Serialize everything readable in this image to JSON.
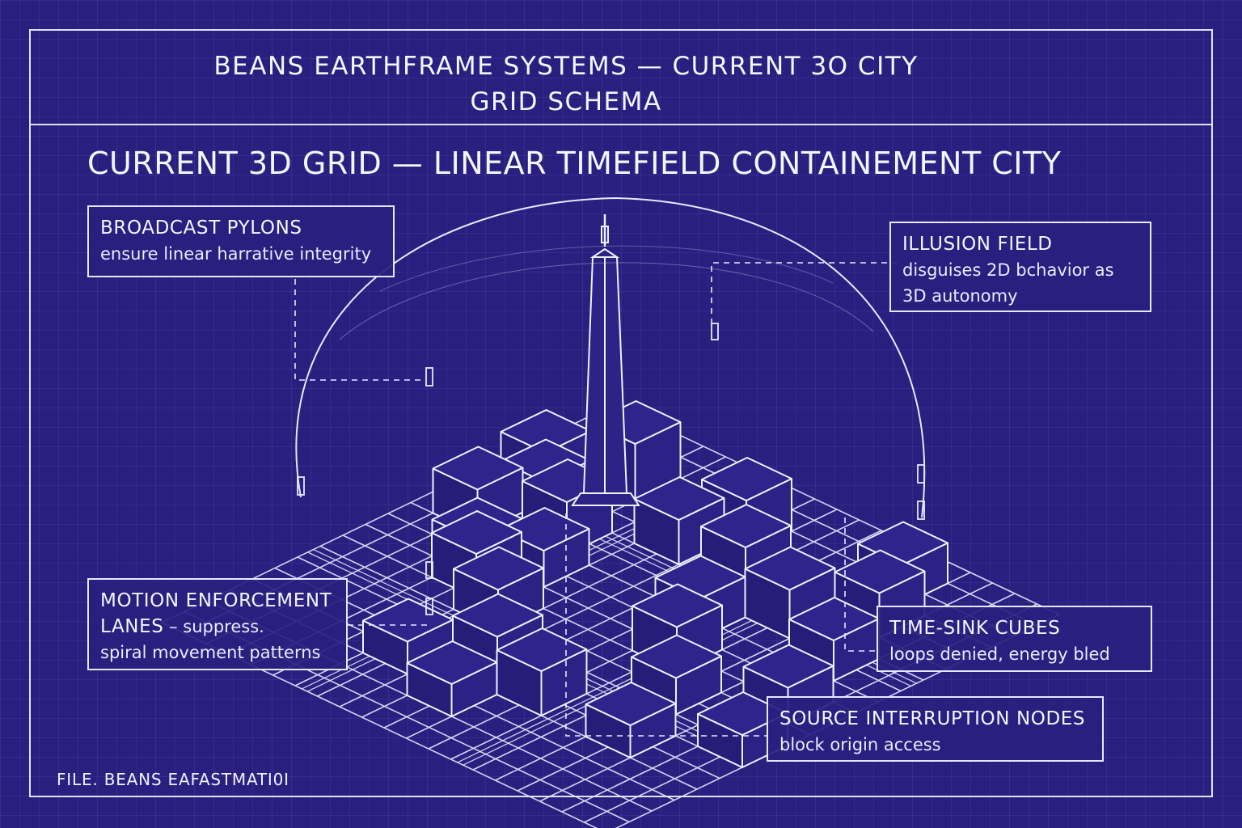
{
  "header": {
    "title": "BEANS EARTHFRAME SYSTEMS — CURRENT 3O CITY\nGRID SCHEMA"
  },
  "main_title": "CURRENT 3D GRID — LINEAR TIMEFIELD CONTAINEMENT CITY",
  "labels": {
    "broadcast_pylons": {
      "heading": "BROADCAST PYLONS",
      "description": "ensure linear harrative integrity"
    },
    "illusion_field": {
      "heading": "ILLUSION FIELD",
      "description_line1": "disguises 2D bchavior as",
      "description_line2": "3D autonomy"
    },
    "motion_enforcement": {
      "heading_line1": "MOTION ENFORCEMENT",
      "heading_line2": "LANES",
      "description_part1": " – suppress.",
      "description_line2": "spiral movement patterns"
    },
    "time_sink_cubes": {
      "heading": "TIME-SINK CUBES",
      "description": "loops denied, energy bled"
    },
    "source_interruption": {
      "heading": "SOURCE INTERRUPTION NODES",
      "description": "block origin access"
    }
  },
  "footer": {
    "file_label": "FILE. BEANS EAFASTMATI0I"
  },
  "colors": {
    "background": "#28207f",
    "line": "#e6e8ff",
    "text": "#f4f5ff"
  }
}
